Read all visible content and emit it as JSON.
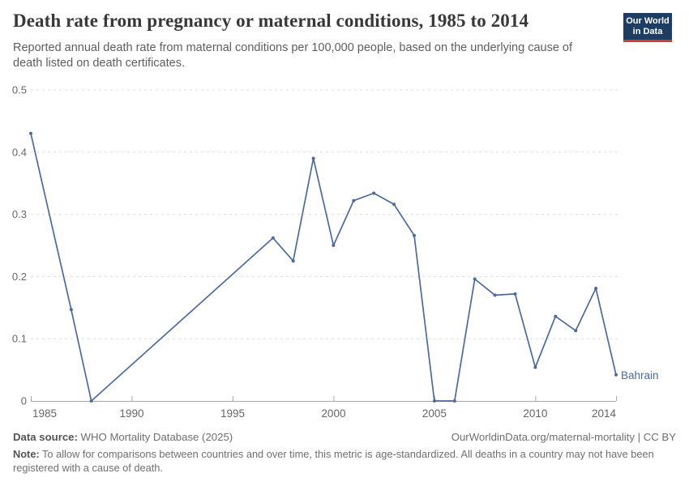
{
  "header": {
    "title": "Death rate from pregnancy or maternal conditions, 1985 to 2014",
    "subtitle": "Reported annual death rate from maternal conditions per 100,000 people, based on the underlying cause of death listed on death certificates.",
    "logo": {
      "line1": "Our World",
      "line2": "in Data",
      "bg_color": "#1d3d63",
      "stripe_color": "#d93a2b"
    }
  },
  "chart_data": {
    "type": "line",
    "title": "Death rate from pregnancy or maternal conditions, 1985 to 2014",
    "xlabel": "",
    "ylabel": "",
    "xlim": [
      1985,
      2014
    ],
    "ylim": [
      0,
      0.5
    ],
    "x_ticks": [
      1985,
      1990,
      1995,
      2000,
      2005,
      2010,
      2014
    ],
    "y_ticks": [
      0,
      0.1,
      0.2,
      0.3,
      0.4,
      0.5
    ],
    "grid": "horizontal-dashed",
    "legend_position": "line-end-label",
    "colors": {
      "grid": "#dcdcdc",
      "axis": "#a8a8a8",
      "tick_label": "#666666"
    },
    "series": [
      {
        "name": "Bahrain",
        "color": "#4c6a9c",
        "x": [
          1985,
          1987,
          1988,
          1997,
          1998,
          1999,
          2000,
          2001,
          2002,
          2003,
          2004,
          2005,
          2006,
          2007,
          2008,
          2009,
          2010,
          2011,
          2012,
          2013,
          2014
        ],
        "y": [
          0.43,
          0.147,
          0,
          0.262,
          0.225,
          0.39,
          0.25,
          0.322,
          0.334,
          0.316,
          0.266,
          0,
          0,
          0.196,
          0.17,
          0.172,
          0.054,
          0.136,
          0.113,
          0.181,
          0.042
        ]
      }
    ]
  },
  "footer": {
    "source_label": "Data source:",
    "source_text": " WHO Mortality Database (2025)",
    "attribution": "OurWorldinData.org/maternal-mortality | CC BY",
    "note_label": "Note:",
    "note_text": " To allow for comparisons between countries and over time, this metric is age-standardized. All deaths in a country may not have been registered with a cause of death."
  }
}
